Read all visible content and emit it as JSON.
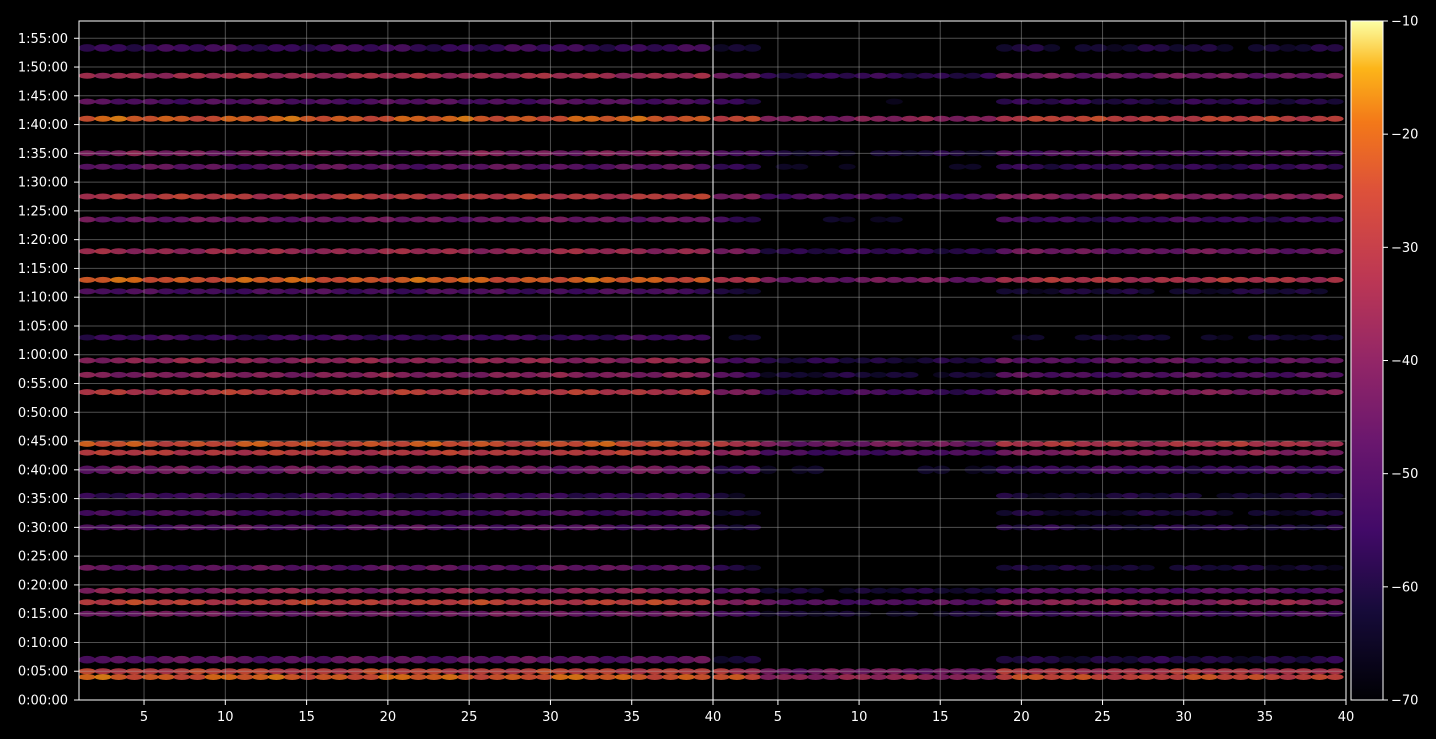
{
  "chart_data": {
    "type": "heatmap",
    "title": "",
    "xlabel": "",
    "ylabel": "",
    "panels": [
      {
        "name": "left",
        "xlim": [
          1,
          40
        ]
      },
      {
        "name": "right",
        "xlim": [
          1,
          40
        ]
      }
    ],
    "x_ticks": [
      5,
      10,
      15,
      20,
      25,
      30,
      35,
      40
    ],
    "x_tick_labels": [
      "5",
      "10",
      "15",
      "20",
      "25",
      "30",
      "35",
      "40"
    ],
    "y_ticks_seconds": [
      0,
      300,
      600,
      900,
      1200,
      1500,
      1800,
      2100,
      2400,
      2700,
      3000,
      3300,
      3600,
      3900,
      4200,
      4500,
      4800,
      5100,
      5400,
      5700,
      6000,
      6300,
      6600,
      6900
    ],
    "y_tick_labels": [
      "0:00:00",
      "0:05:00",
      "0:10:00",
      "0:15:00",
      "0:20:00",
      "0:25:00",
      "0:30:00",
      "0:35:00",
      "0:40:00",
      "0:45:00",
      "0:50:00",
      "0:55:00",
      "1:00:00",
      "1:05:00",
      "1:10:00",
      "1:15:00",
      "1:20:00",
      "1:25:00",
      "1:30:00",
      "1:35:00",
      "1:40:00",
      "1:45:00",
      "1:50:00",
      "1:55:00"
    ],
    "ylim_seconds": [
      0,
      7080
    ],
    "grid": true,
    "colorbar": {
      "colormap": "inferno",
      "range": [
        -70,
        -10
      ],
      "ticks": [
        -70,
        -60,
        -50,
        -40,
        -30,
        -20,
        -10
      ],
      "tick_labels": [
        "−70",
        "−60",
        "−50",
        "−40",
        "−30",
        "−20",
        "−10"
      ]
    },
    "bands": [
      {
        "t": 240,
        "left": -22,
        "right": -26,
        "w": 50
      },
      {
        "t": 300,
        "left": -28,
        "right": -32,
        "w": 40
      },
      {
        "t": 420,
        "left": -48,
        "right": -60,
        "w": 80
      },
      {
        "t": 900,
        "left": -45,
        "right": -52,
        "w": 40
      },
      {
        "t": 1020,
        "left": -28,
        "right": -38,
        "w": 50
      },
      {
        "t": 1140,
        "left": -40,
        "right": -50,
        "w": 40
      },
      {
        "t": 1380,
        "left": -48,
        "right": -62,
        "w": 60
      },
      {
        "t": 1800,
        "left": -50,
        "right": -60,
        "w": 50
      },
      {
        "t": 1950,
        "left": -52,
        "right": -62,
        "w": 40
      },
      {
        "t": 2130,
        "left": -55,
        "right": -62,
        "w": 40
      },
      {
        "t": 2400,
        "left": -45,
        "right": -55,
        "w": 90
      },
      {
        "t": 2580,
        "left": -30,
        "right": -40,
        "w": 40
      },
      {
        "t": 2670,
        "left": -24,
        "right": -32,
        "w": 40
      },
      {
        "t": 3210,
        "left": -30,
        "right": -42,
        "w": 40
      },
      {
        "t": 3390,
        "left": -40,
        "right": -50,
        "w": 40
      },
      {
        "t": 3540,
        "left": -38,
        "right": -48,
        "w": 60
      },
      {
        "t": 3780,
        "left": -55,
        "right": -64,
        "w": 40
      },
      {
        "t": 4260,
        "left": -52,
        "right": -62,
        "w": 40
      },
      {
        "t": 4380,
        "left": -22,
        "right": -32,
        "w": 40
      },
      {
        "t": 4680,
        "left": -36,
        "right": -45,
        "w": 40
      },
      {
        "t": 5010,
        "left": -45,
        "right": -55,
        "w": 40
      },
      {
        "t": 5250,
        "left": -30,
        "right": -40,
        "w": 40
      },
      {
        "t": 5560,
        "left": -48,
        "right": -56,
        "w": 60
      },
      {
        "t": 5700,
        "left": -42,
        "right": -50,
        "w": 40
      },
      {
        "t": 6060,
        "left": -22,
        "right": -28,
        "w": 40
      },
      {
        "t": 6240,
        "left": -50,
        "right": -58,
        "w": 40
      },
      {
        "t": 6510,
        "left": -35,
        "right": -45,
        "w": 50
      },
      {
        "t": 6800,
        "left": -55,
        "right": -62,
        "w": 80
      }
    ]
  }
}
